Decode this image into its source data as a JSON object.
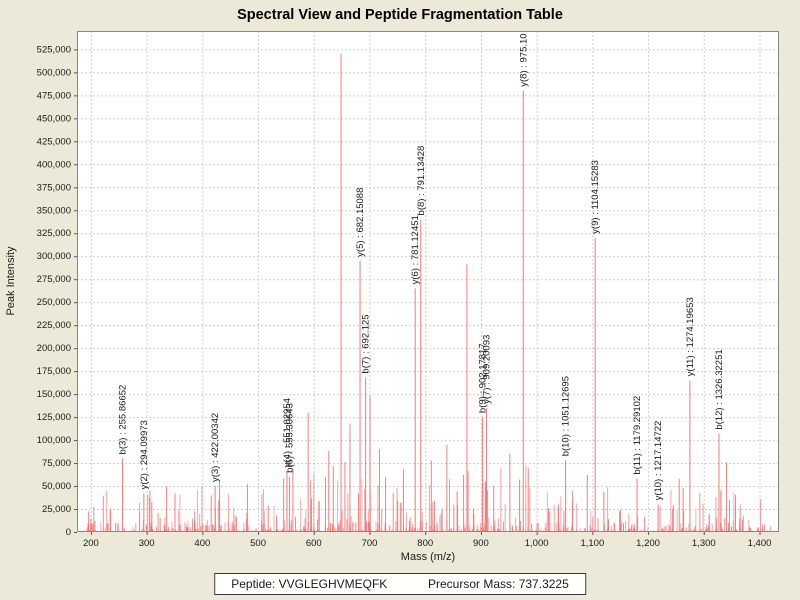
{
  "title": "Spectral View and Peptide Fragmentation Table",
  "footer": {
    "peptide_label": "Peptide:",
    "peptide_value": "VVGLEGHVMEQFK",
    "precursor_label": "Precursor Mass:",
    "precursor_value": "737.3225"
  },
  "chart_data": {
    "type": "bar",
    "title": "Spectral View and Peptide Fragmentation Table",
    "xlabel": "Mass (m/z)",
    "ylabel": "Peak Intensity",
    "xlim": [
      175,
      1435
    ],
    "ylim": [
      0,
      545000
    ],
    "x_ticks": [
      200,
      300,
      400,
      500,
      600,
      700,
      800,
      900,
      1000,
      1100,
      1200,
      1300,
      1400
    ],
    "y_ticks": [
      0,
      25000,
      50000,
      75000,
      100000,
      125000,
      150000,
      175000,
      200000,
      225000,
      250000,
      275000,
      300000,
      325000,
      350000,
      375000,
      400000,
      425000,
      450000,
      475000,
      500000,
      525000
    ],
    "grid": "dashed",
    "legend": "none",
    "colors": {
      "background": "#ece9d8",
      "plot_bg": "#ffffff",
      "grid": "#cfcfcf",
      "border": "#888888",
      "tick": "#555555",
      "peak": "#f57070",
      "label_text": "#1a1a1a"
    },
    "labeled_peaks": [
      {
        "label": "b(3) : 255.86652",
        "mz": 255.86652,
        "intensity": 80000
      },
      {
        "label": "y(2) : 294.09973",
        "mz": 294.09973,
        "intensity": 42000
      },
      {
        "label": "y(3) : 422.00342",
        "mz": 422.00342,
        "intensity": 50000
      },
      {
        "label": "b(6) : 555.30643",
        "mz": 555.30643,
        "intensity": 60000
      },
      {
        "label": "y(4) : 551.02954",
        "mz": 551.02954,
        "intensity": 66000
      },
      {
        "label": "y(5) : 682.15088",
        "mz": 682.15088,
        "intensity": 295000
      },
      {
        "label": "b(7) : 692.125",
        "mz": 692.125,
        "intensity": 168000
      },
      {
        "label": "y(6) : 781.12451",
        "mz": 781.12451,
        "intensity": 265000
      },
      {
        "label": "b(8) : 791.13428",
        "mz": 791.13428,
        "intensity": 340000
      },
      {
        "label": "b(9) : 902.17817",
        "mz": 902.17817,
        "intensity": 125000
      },
      {
        "label": "y(7) : 909.20093",
        "mz": 909.20093,
        "intensity": 135000
      },
      {
        "label": "y(8) : 975.10",
        "mz": 975.1,
        "intensity": 480000
      },
      {
        "label": "b(10) : 1051.12695",
        "mz": 1051.12695,
        "intensity": 78000
      },
      {
        "label": "y(9) : 1104.15283",
        "mz": 1104.15283,
        "intensity": 320000
      },
      {
        "label": "b(11) : 1179.29102",
        "mz": 1179.29102,
        "intensity": 58000
      },
      {
        "label": "y(10) : 1217.14722",
        "mz": 1217.14722,
        "intensity": 30000
      },
      {
        "label": "y(11) : 1274.19653",
        "mz": 1274.19653,
        "intensity": 165000
      },
      {
        "label": "b(12) : 1326.32251",
        "mz": 1326.32251,
        "intensity": 107000
      }
    ],
    "unlabeled_major_peaks": [
      [
        648,
        520000
      ],
      [
        874,
        292000
      ],
      [
        589,
        130000
      ],
      [
        664,
        118000
      ],
      [
        700,
        148000
      ],
      [
        626,
        88000
      ],
      [
        634,
        72000
      ],
      [
        655,
        76000
      ],
      [
        951,
        85000
      ],
      [
        984,
        70000
      ],
      [
        868,
        62000
      ],
      [
        838,
        95000
      ],
      [
        810,
        78000
      ],
      [
        760,
        68000
      ],
      [
        1090,
        62000
      ],
      [
        1255,
        58000
      ],
      [
        1340,
        76000
      ],
      [
        545,
        58000
      ],
      [
        620,
        60000
      ],
      [
        907,
        55000
      ],
      [
        922,
        50000
      ],
      [
        1262,
        48000
      ],
      [
        717,
        90000
      ],
      [
        728,
        60000
      ],
      [
        480,
        52000
      ],
      [
        335,
        50000
      ],
      [
        305,
        45000
      ],
      [
        350,
        42000
      ],
      [
        415,
        40000
      ],
      [
        430,
        55000
      ]
    ],
    "noise_layers": [
      {
        "seed": 12345,
        "count": 300,
        "mz_min": 190,
        "mz_max": 1415,
        "pow": 2.6,
        "max_intensity": 50000,
        "base": 1500,
        "boost": [
          540,
          1010
        ],
        "boost_factor": 1.5
      },
      {
        "seed": 777,
        "count": 300,
        "mz_min": 190,
        "mz_max": 1420,
        "pow": 1.8,
        "max_intensity": 9000,
        "base": 1000,
        "boost": [
          500,
          1050
        ],
        "boost_factor": 1.3
      }
    ]
  }
}
